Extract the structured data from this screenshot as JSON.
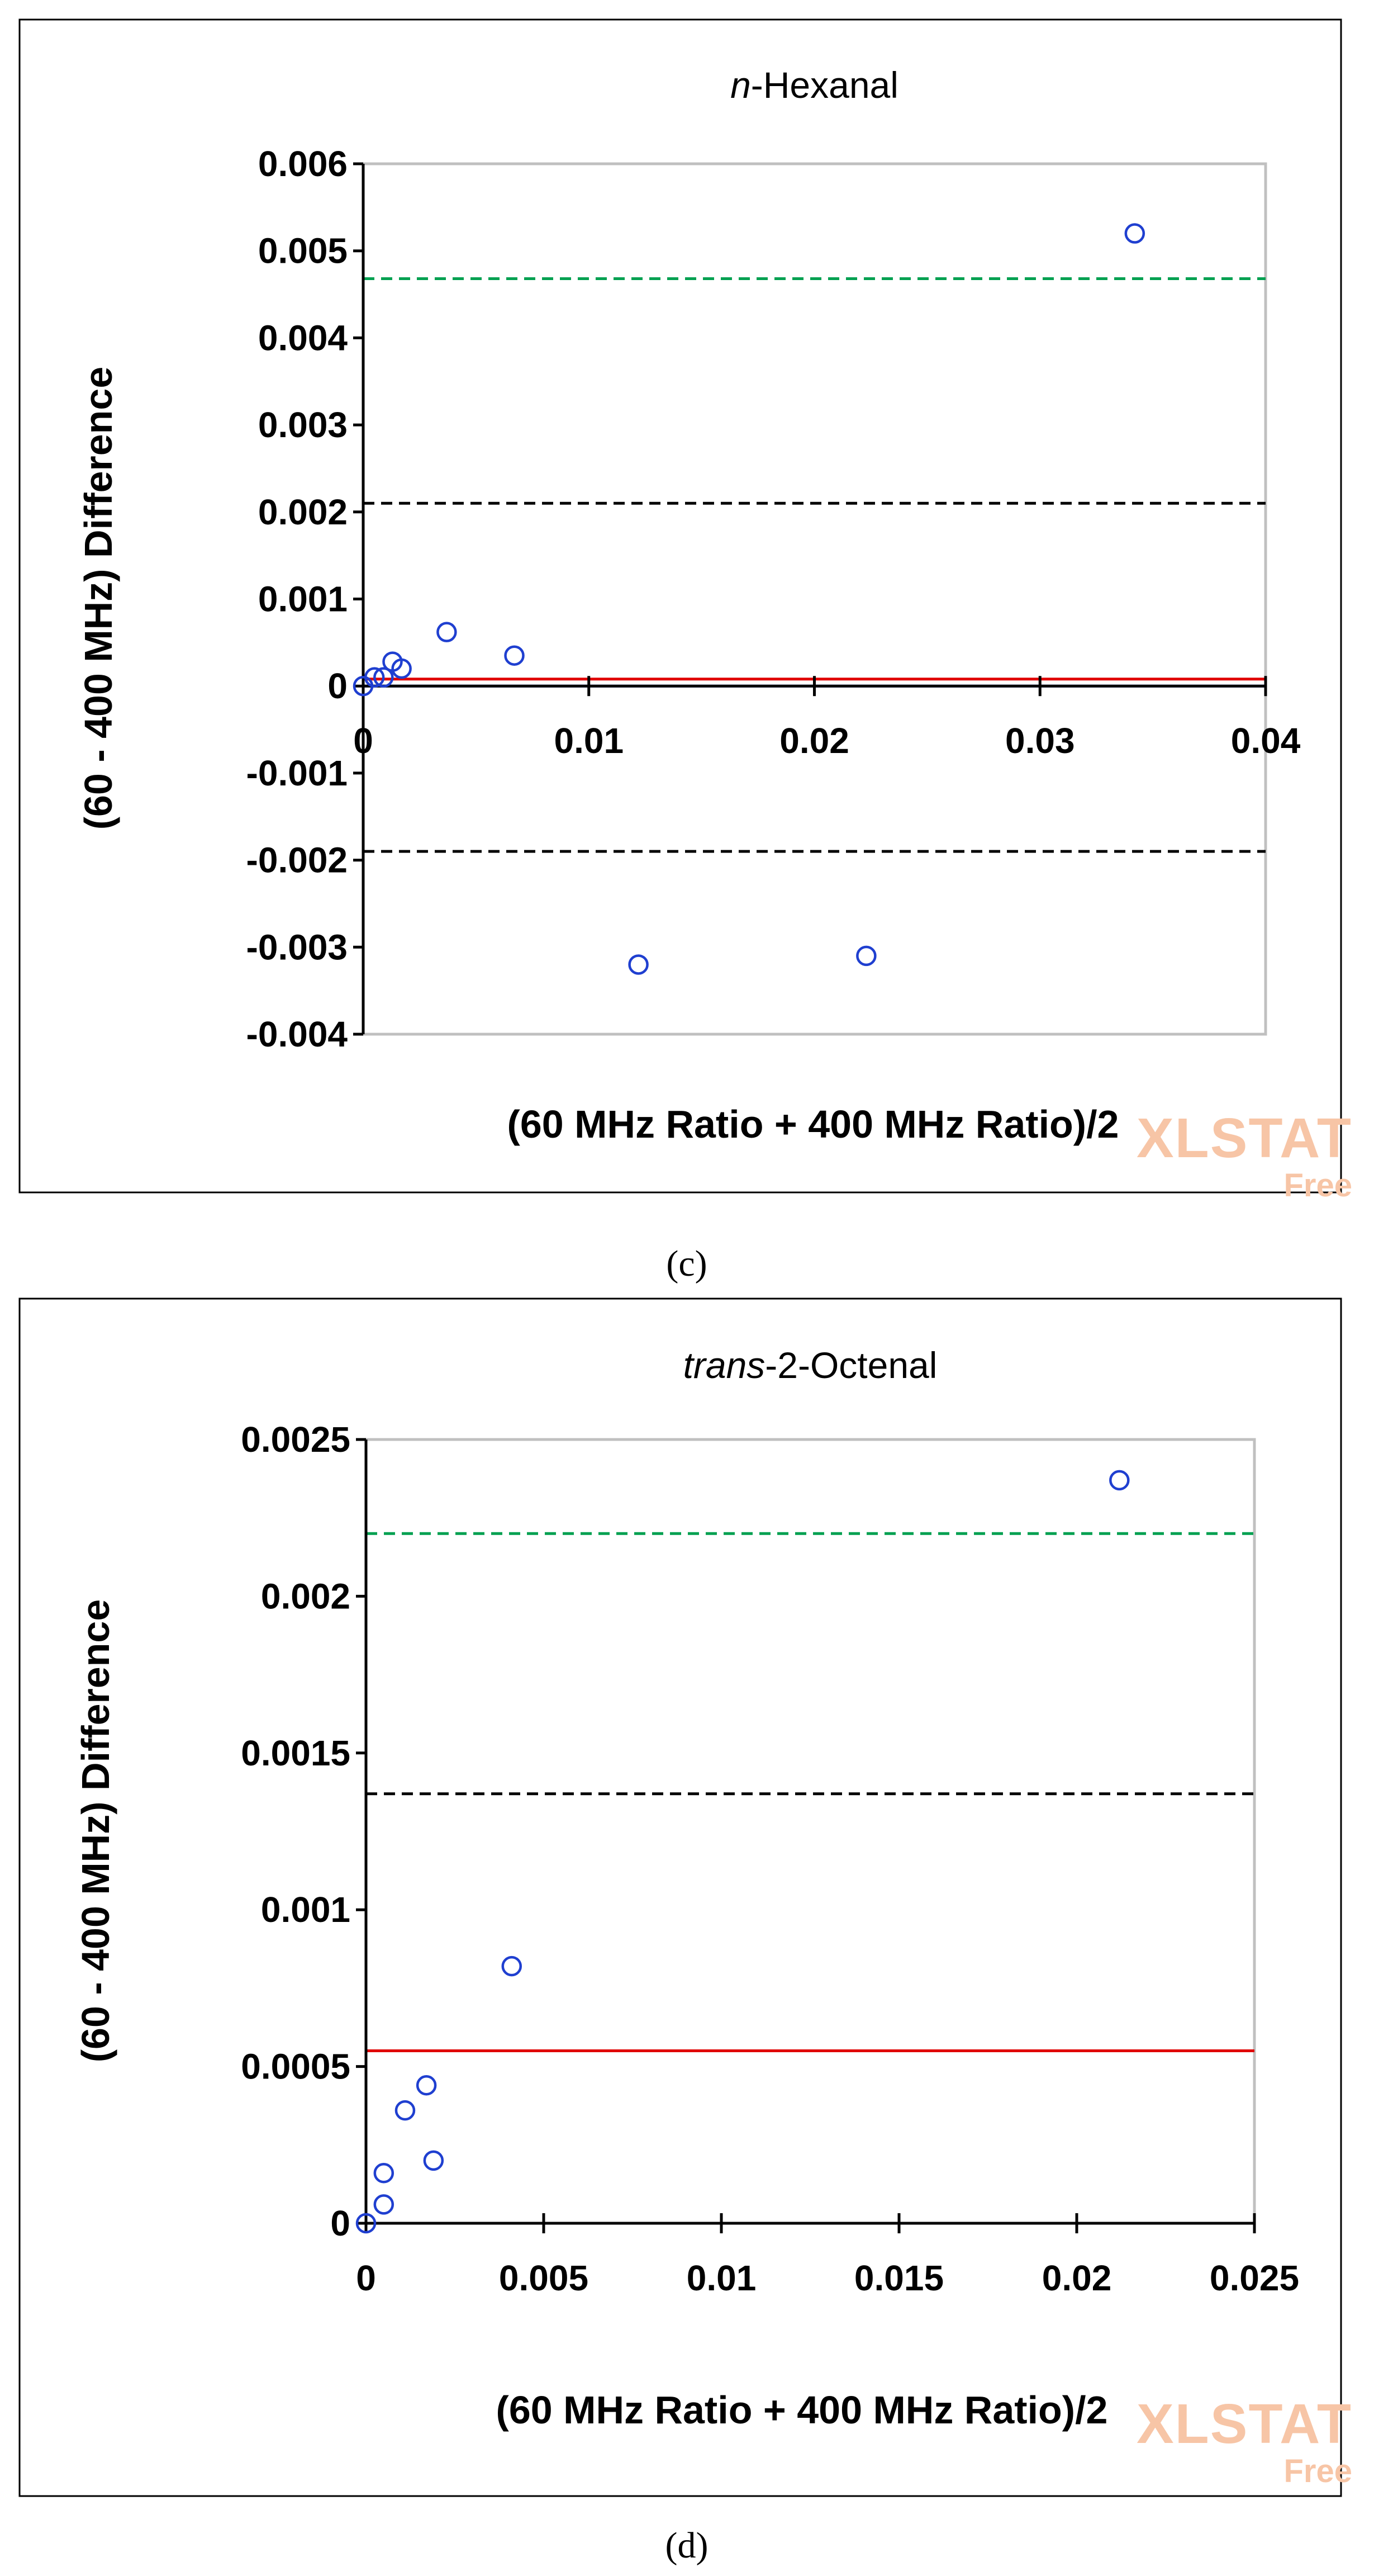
{
  "watermark": {
    "brand": "XLSTAT",
    "edition": "Free"
  },
  "chart_data": [
    {
      "type": "scatter",
      "caption": "(c)",
      "title_prefix": "n",
      "title_rest": "-Hexanal",
      "xlabel": "(60 MHz Ratio + 400 MHz Ratio)/2",
      "ylabel": "(60 - 400 MHz) Difference",
      "xlim": [
        0,
        0.04
      ],
      "ylim": [
        -0.004,
        0.006
      ],
      "xticks": [
        0,
        0.01,
        0.02,
        0.03,
        0.04
      ],
      "xtick_labels": [
        "0",
        "0.01",
        "0.02",
        "0.03",
        "0.04"
      ],
      "yticks": [
        -0.004,
        -0.003,
        -0.002,
        -0.001,
        0,
        0.001,
        0.002,
        0.003,
        0.004,
        0.005,
        0.006
      ],
      "ytick_labels": [
        "-0.004",
        "-0.003",
        "-0.002",
        "-0.001",
        "0",
        "0.001",
        "0.002",
        "0.003",
        "0.004",
        "0.005",
        "0.006"
      ],
      "x_axis_at": 0,
      "points": [
        {
          "x": 0.0,
          "y": 0.0
        },
        {
          "x": 0.0005,
          "y": 0.0001
        },
        {
          "x": 0.0009,
          "y": 0.0001
        },
        {
          "x": 0.0013,
          "y": 0.00028
        },
        {
          "x": 0.0017,
          "y": 0.0002
        },
        {
          "x": 0.0037,
          "y": 0.00062
        },
        {
          "x": 0.0067,
          "y": 0.00035
        },
        {
          "x": 0.0122,
          "y": -0.0032
        },
        {
          "x": 0.0223,
          "y": -0.0031
        },
        {
          "x": 0.0342,
          "y": 0.0052
        }
      ],
      "reference_lines": [
        {
          "name": "upper-limit-green",
          "y": 0.00468,
          "color": "#00a050",
          "dash": true
        },
        {
          "name": "upper-limit",
          "y": 0.0021,
          "color": "#000000",
          "dash": true
        },
        {
          "name": "mean-difference",
          "y": 8e-05,
          "color": "#e00000",
          "dash": false
        },
        {
          "name": "zero-line",
          "y": 0.0,
          "color": "#1f3fd0",
          "dash": false
        },
        {
          "name": "lower-limit",
          "y": -0.0019,
          "color": "#000000",
          "dash": true
        }
      ]
    },
    {
      "type": "scatter",
      "caption": "(d)",
      "title_prefix": "trans",
      "title_rest": "-2-Octenal",
      "xlabel": "(60 MHz Ratio + 400 MHz Ratio)/2",
      "ylabel": "(60 - 400 MHz) Difference",
      "xlim": [
        0,
        0.025
      ],
      "ylim": [
        0,
        0.0025
      ],
      "xticks": [
        0,
        0.005,
        0.01,
        0.015,
        0.02,
        0.025
      ],
      "xtick_labels": [
        "0",
        "0.005",
        "0.01",
        "0.015",
        "0.02",
        "0.025"
      ],
      "yticks": [
        0,
        0.0005,
        0.001,
        0.0015,
        0.002,
        0.0025
      ],
      "ytick_labels": [
        "0",
        "0.0005",
        "0.001",
        "0.0015",
        "0.002",
        "0.0025"
      ],
      "x_axis_at": 0,
      "points": [
        {
          "x": 0.0,
          "y": 0.0
        },
        {
          "x": 0.0005,
          "y": 6e-05
        },
        {
          "x": 0.0005,
          "y": 0.00016
        },
        {
          "x": 0.0011,
          "y": 0.00036
        },
        {
          "x": 0.0017,
          "y": 0.00044
        },
        {
          "x": 0.0019,
          "y": 0.0002
        },
        {
          "x": 0.0041,
          "y": 0.00082
        },
        {
          "x": 0.0212,
          "y": 0.00237
        }
      ],
      "reference_lines": [
        {
          "name": "upper-limit-green",
          "y": 0.0022,
          "color": "#00a050",
          "dash": true
        },
        {
          "name": "upper-limit",
          "y": 0.00137,
          "color": "#000000",
          "dash": true
        },
        {
          "name": "mean-difference",
          "y": 0.00055,
          "color": "#e00000",
          "dash": false
        },
        {
          "name": "zero-line",
          "y": 0.0,
          "color": "#1f3fd0",
          "dash": false
        }
      ]
    }
  ]
}
